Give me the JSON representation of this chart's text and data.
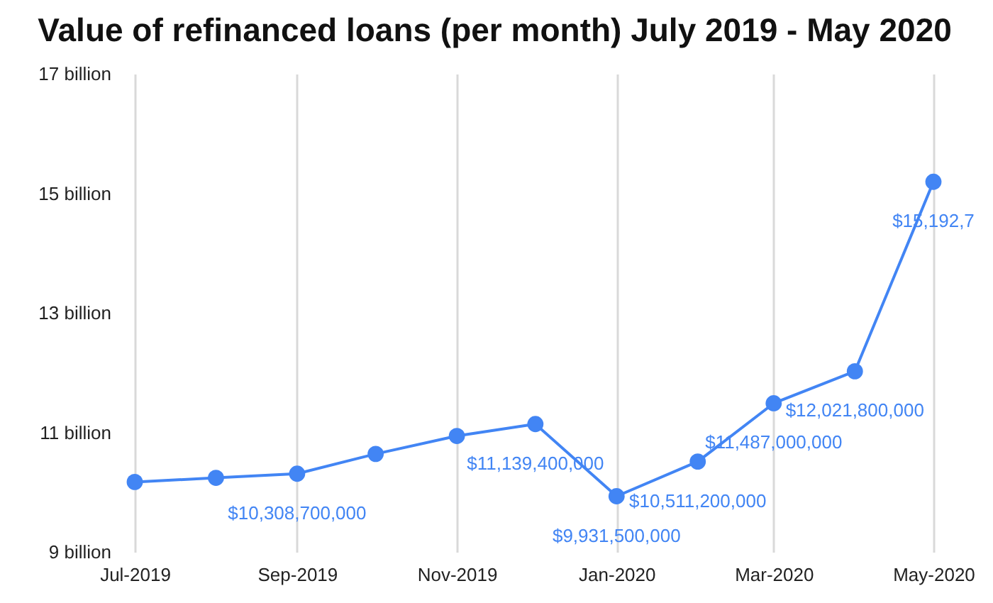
{
  "chart_data": {
    "type": "line",
    "title": "Value of refinanced loans (per month) July 2019 - May 2020",
    "x": [
      "2019-07",
      "2019-08",
      "2019-09",
      "2019-10",
      "2019-11",
      "2019-12",
      "2020-01",
      "2020-02",
      "2020-03",
      "2020-04",
      "2020-05"
    ],
    "values": [
      10170000000,
      10240000000,
      10308700000,
      10640000000,
      10940000000,
      11139400000,
      9931500000,
      10511200000,
      11487000000,
      12021800000,
      15192700000
    ],
    "color": "#4285f4",
    "value_labels": [
      null,
      null,
      "$10,308,700,000",
      null,
      null,
      "$11,139,400,000",
      "$9,931,500,000",
      "$10,511,200,000",
      "$11,487,000,000",
      "$12,021,800,000",
      "$15,192,7"
    ],
    "xlim": [
      "2019-07",
      "2020-05"
    ],
    "xticks": [
      {
        "value": "2019-07",
        "label": "Jul-2019"
      },
      {
        "value": "2019-09",
        "label": "Sep-2019"
      },
      {
        "value": "2019-11",
        "label": "Nov-2019"
      },
      {
        "value": "2020-01",
        "label": "Jan-2020"
      },
      {
        "value": "2020-03",
        "label": "Mar-2020"
      },
      {
        "value": "2020-05",
        "label": "May-2020"
      }
    ],
    "ylim": [
      9000000000,
      17000000000
    ],
    "yticks": [
      {
        "value": 9000000000,
        "label": "9 billion"
      },
      {
        "value": 11000000000,
        "label": "11 billion"
      },
      {
        "value": 13000000000,
        "label": "13 billion"
      },
      {
        "value": 15000000000,
        "label": "15 billion"
      },
      {
        "value": 17000000000,
        "label": "17 billion"
      }
    ],
    "grid": "x",
    "marker": "circle"
  }
}
